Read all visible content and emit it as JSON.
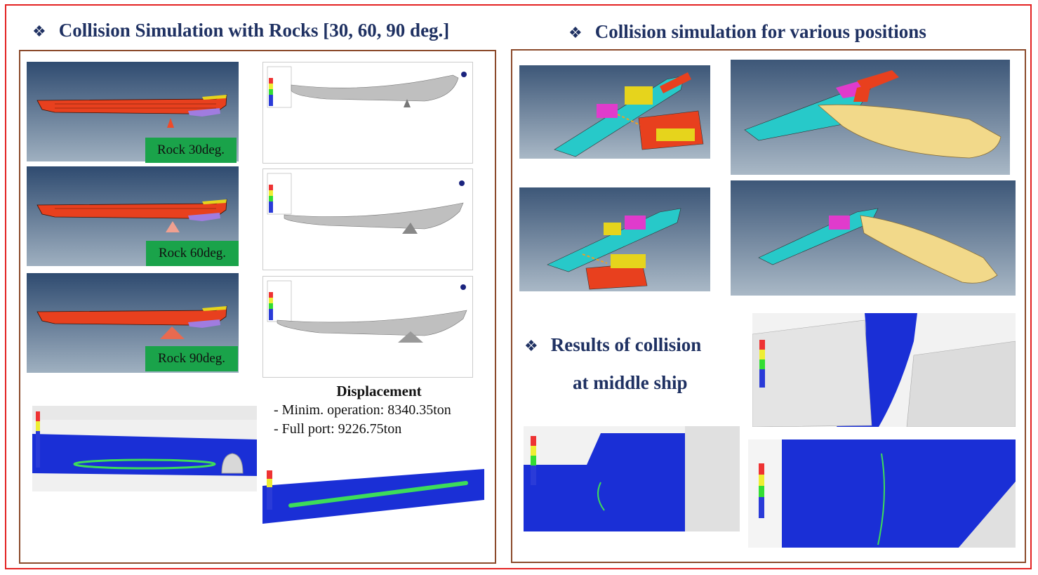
{
  "left_section": {
    "bullet": "❖",
    "title": "Collision Simulation with Rocks [30, 60, 90 deg.]",
    "rock_labels": [
      "Rock 30deg.",
      "Rock 60deg.",
      "Rock 90deg."
    ],
    "displacement": {
      "title": "Displacement",
      "lines": [
        "- Minim. operation: 8340.35ton",
        "- Full port: 9226.75ton"
      ]
    }
  },
  "right_section": {
    "bullet": "❖",
    "title": "Collision simulation for various positions",
    "results": {
      "bullet": "❖",
      "line1": "Results of collision",
      "line2": "at middle ship"
    }
  },
  "colors": {
    "border_red": "#e32222",
    "panel_brown": "#8b4a2b",
    "heading_navy": "#1f3162",
    "label_green": "#1aa34a",
    "hull_red": "#e8401e",
    "fea_blue": "#1a2fd6",
    "bg_slate": "#4f6a8a"
  }
}
